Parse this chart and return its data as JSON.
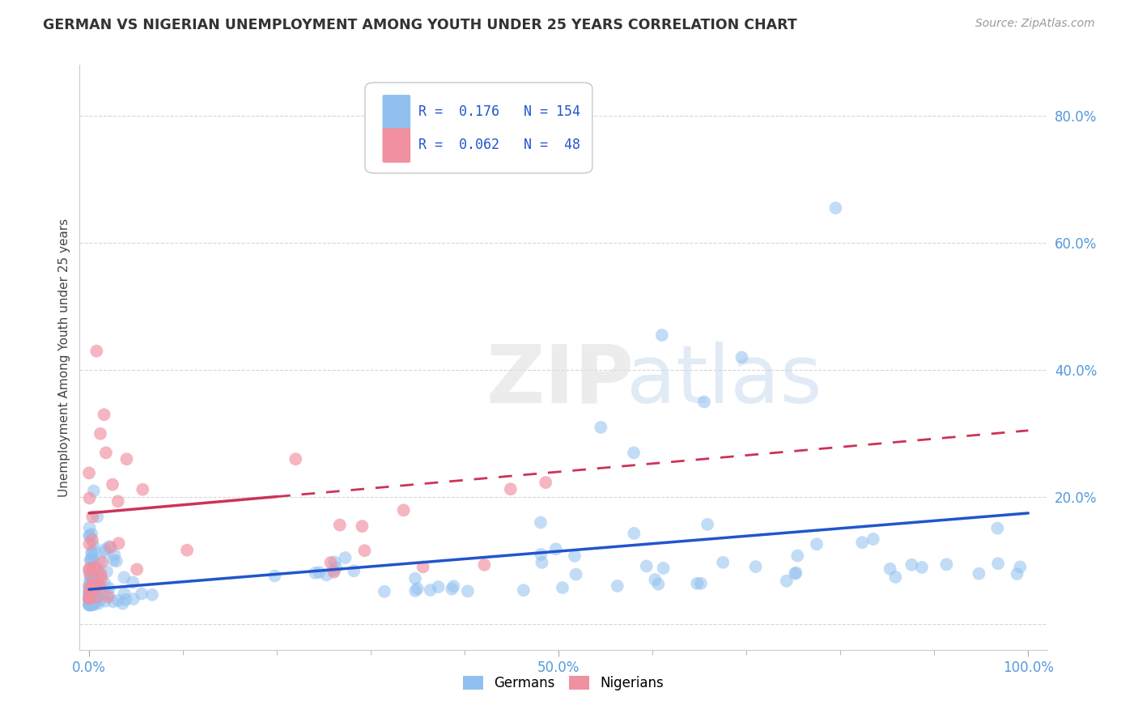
{
  "title": "GERMAN VS NIGERIAN UNEMPLOYMENT AMONG YOUTH UNDER 25 YEARS CORRELATION CHART",
  "source": "Source: ZipAtlas.com",
  "ylabel": "Unemployment Among Youth under 25 years",
  "german_color": "#90c0f0",
  "nigerian_color": "#f090a0",
  "german_line_color": "#2255cc",
  "nigerian_line_color": "#cc3355",
  "german_R": 0.176,
  "german_N": 154,
  "nigerian_R": 0.062,
  "nigerian_N": 48,
  "background_color": "#ffffff",
  "grid_color": "#cccccc",
  "tick_color": "#5599dd",
  "title_color": "#333333",
  "source_color": "#999999"
}
